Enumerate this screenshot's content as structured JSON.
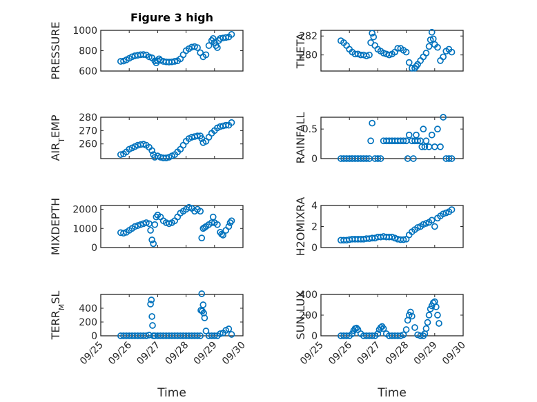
{
  "figure": {
    "title": "Figure 3 high",
    "marker_color": "#0072bd",
    "x_tick_labels": [
      "09/25",
      "09/26",
      "09/27",
      "09/28",
      "09/29",
      "09/30"
    ],
    "x_label": "Time"
  },
  "chart_data": [
    {
      "type": "scatter",
      "title": "Figure 3 high",
      "ylabel": "PRESSURE",
      "xlabel": "",
      "xlim": [
        0,
        5
      ],
      "ylim": [
        600,
        1000
      ],
      "yticks": [
        600,
        800,
        1000
      ],
      "grid": true,
      "x": [
        0.7,
        0.8,
        0.9,
        1.0,
        1.1,
        1.2,
        1.3,
        1.4,
        1.5,
        1.6,
        1.7,
        1.8,
        1.9,
        1.95,
        2.0,
        2.05,
        2.1,
        2.2,
        2.3,
        2.4,
        2.5,
        2.6,
        2.7,
        2.8,
        2.9,
        3.0,
        3.1,
        3.2,
        3.3,
        3.4,
        3.5,
        3.6,
        3.7,
        3.8,
        3.9,
        3.95,
        4.0,
        4.05,
        4.1,
        4.15,
        4.2,
        4.3,
        4.4,
        4.5,
        4.6
      ],
      "y": [
        695,
        698,
        710,
        725,
        740,
        750,
        755,
        760,
        762,
        758,
        740,
        730,
        700,
        680,
        700,
        720,
        705,
        695,
        690,
        688,
        690,
        695,
        700,
        720,
        760,
        800,
        820,
        835,
        840,
        830,
        780,
        740,
        760,
        850,
        900,
        920,
        880,
        850,
        830,
        900,
        920,
        925,
        930,
        935,
        960
      ]
    },
    {
      "type": "scatter",
      "ylabel": "THETA",
      "xlabel": "",
      "xlim": [
        0,
        5
      ],
      "ylim": [
        278.3,
        282.6
      ],
      "yticks": [
        280,
        282
      ],
      "grid": true,
      "x": [
        0.7,
        0.8,
        0.9,
        1.0,
        1.1,
        1.2,
        1.3,
        1.4,
        1.5,
        1.6,
        1.7,
        1.75,
        1.8,
        1.85,
        1.9,
        2.0,
        2.1,
        2.2,
        2.3,
        2.4,
        2.5,
        2.6,
        2.7,
        2.8,
        2.9,
        3.0,
        3.1,
        3.2,
        3.3,
        3.35,
        3.4,
        3.5,
        3.6,
        3.7,
        3.8,
        3.85,
        3.9,
        3.95,
        4.0,
        4.1,
        4.2,
        4.3,
        4.4,
        4.5,
        4.6
      ],
      "y": [
        281.5,
        281.3,
        281.0,
        280.6,
        280.3,
        280.1,
        280.1,
        280.0,
        280.0,
        279.9,
        280.0,
        281.3,
        282.3,
        281.9,
        281.0,
        280.6,
        280.4,
        280.2,
        280.1,
        280.0,
        280.1,
        280.3,
        280.7,
        280.7,
        280.5,
        280.3,
        279.2,
        278.6,
        278.6,
        278.8,
        279.0,
        279.4,
        279.8,
        280.2,
        280.9,
        281.6,
        282.4,
        281.7,
        281.1,
        280.8,
        279.4,
        279.8,
        280.4,
        280.6,
        280.3
      ]
    },
    {
      "type": "scatter",
      "ylabel": "AIR_TEMP",
      "xlabel": "",
      "xlim": [
        0,
        5
      ],
      "ylim": [
        249,
        280
      ],
      "yticks": [
        260,
        270,
        280
      ],
      "grid": true,
      "x": [
        0.7,
        0.8,
        0.9,
        1.0,
        1.1,
        1.2,
        1.3,
        1.4,
        1.5,
        1.6,
        1.7,
        1.8,
        1.85,
        1.9,
        2.0,
        2.1,
        2.2,
        2.3,
        2.4,
        2.5,
        2.6,
        2.7,
        2.8,
        2.9,
        3.0,
        3.1,
        3.2,
        3.3,
        3.4,
        3.5,
        3.55,
        3.6,
        3.7,
        3.8,
        3.9,
        4.0,
        4.1,
        4.2,
        4.3,
        4.4,
        4.5,
        4.6
      ],
      "y": [
        252,
        252.5,
        254,
        256,
        257,
        258,
        259,
        259.5,
        259.8,
        259,
        257.5,
        255,
        252,
        250,
        251,
        250,
        249.5,
        249.5,
        250,
        251,
        252,
        254,
        256,
        259,
        262,
        264,
        265,
        265.5,
        266,
        266,
        264,
        261,
        262,
        265,
        268,
        270,
        272,
        273,
        273.5,
        274,
        274,
        276
      ]
    },
    {
      "type": "scatter",
      "ylabel": "RAINFALL",
      "xlabel": "",
      "xlim": [
        0,
        5
      ],
      "ylim": [
        0,
        0.7
      ],
      "yticks": [
        0,
        0.5
      ],
      "grid": true,
      "x": [
        0.7,
        0.8,
        0.9,
        1.0,
        1.1,
        1.2,
        1.3,
        1.4,
        1.5,
        1.6,
        1.7,
        1.75,
        1.8,
        1.9,
        2.0,
        2.1,
        2.2,
        2.3,
        2.4,
        2.5,
        2.6,
        2.7,
        2.8,
        2.9,
        3.0,
        3.05,
        3.1,
        3.2,
        3.25,
        3.3,
        3.35,
        3.4,
        3.5,
        3.55,
        3.6,
        3.65,
        3.7,
        3.8,
        3.9,
        4.0,
        4.1,
        4.2,
        4.3,
        4.4,
        4.5,
        4.6
      ],
      "y": [
        0,
        0,
        0,
        0,
        0,
        0,
        0,
        0,
        0,
        0,
        0,
        0.3,
        0.6,
        0,
        0,
        0,
        0.3,
        0.3,
        0.3,
        0.3,
        0.3,
        0.3,
        0.3,
        0.3,
        0.3,
        0,
        0.4,
        0.3,
        0,
        0.3,
        0.4,
        0.3,
        0.3,
        0.2,
        0.5,
        0.2,
        0.3,
        0.2,
        0.4,
        0.2,
        0.5,
        0.2,
        0.7,
        0,
        0,
        0
      ]
    },
    {
      "type": "scatter",
      "ylabel": "MIXDEPTH",
      "xlabel": "",
      "xlim": [
        0,
        5
      ],
      "ylim": [
        0,
        2200
      ],
      "yticks": [
        0,
        1000,
        2000
      ],
      "grid": true,
      "x": [
        0.7,
        0.8,
        0.9,
        1.0,
        1.1,
        1.2,
        1.3,
        1.4,
        1.5,
        1.6,
        1.7,
        1.75,
        1.8,
        1.85,
        1.9,
        1.95,
        2.0,
        2.1,
        2.2,
        2.3,
        2.4,
        2.5,
        2.6,
        2.7,
        2.8,
        2.9,
        3.0,
        3.1,
        3.2,
        3.3,
        3.4,
        3.5,
        3.55,
        3.6,
        3.65,
        3.7,
        3.8,
        3.9,
        3.95,
        4.0,
        4.1,
        4.2,
        4.25,
        4.3,
        4.4,
        4.5,
        4.55,
        4.6
      ],
      "y": [
        780,
        750,
        800,
        900,
        1000,
        1100,
        1150,
        1200,
        1250,
        1300,
        1250,
        900,
        400,
        200,
        1200,
        1600,
        1700,
        1600,
        1400,
        1300,
        1250,
        1300,
        1400,
        1600,
        1800,
        1900,
        2000,
        2100,
        2050,
        1900,
        2000,
        1900,
        500,
        1000,
        1050,
        1100,
        1200,
        1300,
        1600,
        1300,
        1200,
        800,
        700,
        650,
        900,
        1100,
        1300,
        1400
      ]
    },
    {
      "type": "scatter",
      "ylabel": "H2OMIXRA",
      "xlabel": "",
      "xlim": [
        0,
        5
      ],
      "ylim": [
        0,
        4
      ],
      "yticks": [
        0,
        2,
        4
      ],
      "grid": true,
      "x": [
        0.7,
        0.8,
        0.9,
        1.0,
        1.1,
        1.2,
        1.3,
        1.4,
        1.5,
        1.6,
        1.7,
        1.8,
        1.9,
        2.0,
        2.1,
        2.2,
        2.3,
        2.4,
        2.5,
        2.6,
        2.7,
        2.8,
        2.9,
        3.0,
        3.1,
        3.2,
        3.3,
        3.4,
        3.5,
        3.6,
        3.7,
        3.8,
        3.9,
        4.0,
        4.1,
        4.2,
        4.3,
        4.4,
        4.5,
        4.6
      ],
      "y": [
        0.7,
        0.7,
        0.7,
        0.75,
        0.8,
        0.8,
        0.8,
        0.8,
        0.8,
        0.85,
        0.85,
        0.9,
        0.9,
        1.0,
        1.0,
        1.05,
        1.0,
        1.0,
        1.0,
        0.9,
        0.8,
        0.75,
        0.75,
        0.8,
        1.2,
        1.5,
        1.7,
        1.9,
        2.0,
        2.2,
        2.3,
        2.4,
        2.6,
        2.0,
        2.8,
        3.0,
        3.2,
        3.3,
        3.4,
        3.6
      ]
    },
    {
      "type": "scatter",
      "ylabel": "TERR_MSL",
      "xlabel": "",
      "xlim": [
        0,
        5
      ],
      "ylim": [
        0,
        600
      ],
      "yticks": [
        0,
        200,
        400
      ],
      "grid": true,
      "x": [
        0.7,
        0.8,
        0.9,
        1.0,
        1.1,
        1.2,
        1.3,
        1.4,
        1.5,
        1.6,
        1.7,
        1.75,
        1.78,
        1.8,
        1.82,
        1.85,
        1.9,
        2.0,
        2.1,
        2.2,
        2.3,
        2.4,
        2.5,
        2.6,
        2.7,
        2.8,
        2.9,
        3.0,
        3.1,
        3.2,
        3.3,
        3.4,
        3.5,
        3.52,
        3.55,
        3.57,
        3.6,
        3.62,
        3.65,
        3.7,
        3.8,
        3.9,
        4.0,
        4.1,
        4.2,
        4.3,
        4.4,
        4.5,
        4.6
      ],
      "y": [
        0,
        0,
        0,
        0,
        0,
        0,
        0,
        0,
        0,
        0,
        10,
        460,
        520,
        280,
        150,
        0,
        0,
        0,
        0,
        0,
        0,
        0,
        0,
        0,
        0,
        0,
        0,
        0,
        0,
        0,
        0,
        0,
        0,
        370,
        610,
        360,
        450,
        330,
        260,
        70,
        0,
        0,
        0,
        0,
        30,
        40,
        80,
        100,
        20
      ]
    },
    {
      "type": "scatter",
      "ylabel": "SUN_FLUX",
      "xlabel": "Time",
      "xlim": [
        0,
        5
      ],
      "ylim": [
        0,
        400
      ],
      "yticks": [
        0,
        200,
        400
      ],
      "grid": true,
      "x": [
        0.7,
        0.8,
        0.9,
        1.0,
        1.1,
        1.15,
        1.2,
        1.25,
        1.3,
        1.4,
        1.5,
        1.6,
        1.7,
        1.8,
        1.9,
        2.0,
        2.05,
        2.1,
        2.15,
        2.2,
        2.3,
        2.4,
        2.5,
        2.6,
        2.7,
        2.8,
        2.9,
        3.0,
        3.05,
        3.1,
        3.15,
        3.2,
        3.3,
        3.4,
        3.5,
        3.6,
        3.65,
        3.7,
        3.75,
        3.8,
        3.85,
        3.9,
        3.95,
        4.0,
        4.05,
        4.1,
        4.15
      ],
      "y": [
        0,
        0,
        0,
        0,
        20,
        50,
        70,
        75,
        60,
        20,
        0,
        0,
        0,
        0,
        0,
        20,
        60,
        80,
        90,
        70,
        20,
        0,
        0,
        0,
        0,
        0,
        10,
        60,
        150,
        200,
        230,
        190,
        80,
        10,
        0,
        0,
        20,
        70,
        130,
        200,
        260,
        290,
        320,
        330,
        280,
        200,
        120
      ]
    }
  ],
  "subplots": [
    {
      "ylabel_main": "PRESSURE",
      "ylabel_sub": "",
      "ylabel_tail": "",
      "ytick_labels": [
        "600",
        "800",
        "1000"
      ]
    },
    {
      "ylabel_main": "THETA",
      "ylabel_sub": "",
      "ylabel_tail": "",
      "ytick_labels": [
        "280",
        "282"
      ]
    },
    {
      "ylabel_main": "AIR",
      "ylabel_sub": "T",
      "ylabel_tail": "EMP",
      "ytick_labels": [
        "260",
        "270",
        "280"
      ]
    },
    {
      "ylabel_main": "RAINFALL",
      "ylabel_sub": "",
      "ylabel_tail": "",
      "ytick_labels": [
        "0",
        "0.5"
      ]
    },
    {
      "ylabel_main": "MIXDEPTH",
      "ylabel_sub": "",
      "ylabel_tail": "",
      "ytick_labels": [
        "0",
        "1000",
        "2000"
      ]
    },
    {
      "ylabel_main": "H2OMIXRA",
      "ylabel_sub": "",
      "ylabel_tail": "",
      "ytick_labels": [
        "0",
        "2",
        "4"
      ]
    },
    {
      "ylabel_main": "TERR",
      "ylabel_sub": "M",
      "ylabel_tail": "SL",
      "ytick_labels": [
        "0",
        "200",
        "400"
      ]
    },
    {
      "ylabel_main": "SUN",
      "ylabel_sub": "F",
      "ylabel_tail": "LUX",
      "ytick_labels": [
        "0",
        "200",
        "400"
      ]
    }
  ]
}
